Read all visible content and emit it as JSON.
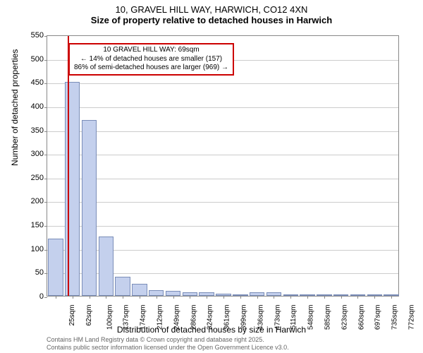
{
  "title": {
    "line1": "10, GRAVEL HILL WAY, HARWICH, CO12 4XN",
    "line2": "Size of property relative to detached houses in Harwich"
  },
  "chart": {
    "type": "histogram",
    "ylabel": "Number of detached properties",
    "xlabel": "Distribution of detached houses by size in Harwich",
    "ylim": [
      0,
      550
    ],
    "ytick_step": 50,
    "yticks": [
      0,
      50,
      100,
      150,
      200,
      250,
      300,
      350,
      400,
      450,
      500,
      550
    ],
    "x_categories": [
      "25sqm",
      "62sqm",
      "100sqm",
      "137sqm",
      "174sqm",
      "212sqm",
      "249sqm",
      "286sqm",
      "324sqm",
      "361sqm",
      "399sqm",
      "436sqm",
      "473sqm",
      "511sqm",
      "548sqm",
      "585sqm",
      "623sqm",
      "660sqm",
      "697sqm",
      "735sqm",
      "772sqm"
    ],
    "values": [
      120,
      450,
      370,
      125,
      40,
      25,
      12,
      10,
      8,
      8,
      5,
      2,
      8,
      8,
      2,
      2,
      3,
      3,
      0,
      3,
      2
    ],
    "bar_fill": "#c4d0ed",
    "bar_stroke": "#7a8db8",
    "grid_color": "#cccccc",
    "background": "#ffffff",
    "marker_color": "#cc0000",
    "marker_value": 69,
    "x_domain": [
      25,
      790
    ],
    "annotation": {
      "line1": "10 GRAVEL HILL WAY: 69sqm",
      "line2": "← 14% of detached houses are smaller (157)",
      "line3": "86% of semi-detached houses are larger (969) →"
    }
  },
  "footer": {
    "line1": "Contains HM Land Registry data © Crown copyright and database right 2025.",
    "line2": "Contains public sector information licensed under the Open Government Licence v3.0."
  }
}
